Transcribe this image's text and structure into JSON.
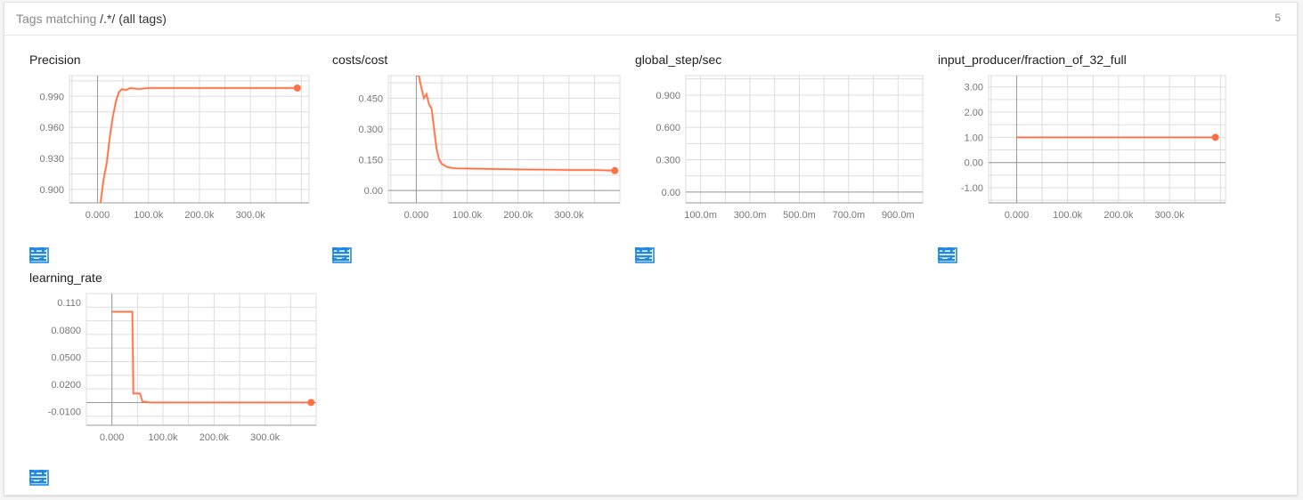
{
  "header": {
    "prefix": "Tags matching",
    "pattern": "/.*/",
    "suffix": "(all tags)",
    "count": "5"
  },
  "colors": {
    "series": "#ff7043",
    "grid": "#dddddd",
    "axis": "#999999",
    "icon": "#1e88e5"
  },
  "icons": [
    "fullscreen-icon",
    "log-scale-icon",
    "fit-domain-icon"
  ],
  "chart_data": [
    {
      "type": "line",
      "title": "Precision",
      "xlim": [
        -55000,
        415000
      ],
      "ylim": [
        0.887,
        1.01
      ],
      "xticks": [
        0,
        100000,
        200000,
        300000
      ],
      "xtick_labels": [
        "0.000",
        "100.0k",
        "200.0k",
        "300.0k"
      ],
      "yticks": [
        0.9,
        0.93,
        0.96,
        0.99
      ],
      "ytick_labels": [
        "0.900",
        "0.930",
        "0.960",
        "0.990"
      ],
      "series": [
        {
          "x": [
            0,
            6000,
            12000,
            18000,
            24000,
            30000,
            36000,
            42000,
            48000,
            55000,
            65000,
            80000,
            100000,
            150000,
            200000,
            250000,
            300000,
            350000,
            392000
          ],
          "y": [
            0.885,
            0.887,
            0.91,
            0.925,
            0.95,
            0.97,
            0.985,
            0.994,
            0.997,
            0.996,
            0.998,
            0.997,
            0.998,
            0.998,
            0.998,
            0.998,
            0.998,
            0.998,
            0.998
          ]
        }
      ]
    },
    {
      "type": "line",
      "title": "costs/cost",
      "xlim": [
        -55000,
        400000
      ],
      "ylim": [
        -0.06,
        0.56
      ],
      "xticks": [
        0,
        100000,
        200000,
        300000
      ],
      "xtick_labels": [
        "0.000",
        "100.0k",
        "200.0k",
        "300.0k"
      ],
      "yticks": [
        0,
        0.15,
        0.3,
        0.45
      ],
      "ytick_labels": [
        "0.00",
        "0.150",
        "0.300",
        "0.450"
      ],
      "series": [
        {
          "x": [
            0,
            5000,
            10000,
            15000,
            20000,
            25000,
            30000,
            35000,
            40000,
            45000,
            50000,
            60000,
            70000,
            80000,
            100000,
            150000,
            200000,
            250000,
            300000,
            350000,
            390000
          ],
          "y": [
            0.56,
            0.56,
            0.5,
            0.45,
            0.47,
            0.42,
            0.4,
            0.3,
            0.2,
            0.15,
            0.13,
            0.115,
            0.11,
            0.108,
            0.107,
            0.105,
            0.103,
            0.102,
            0.1,
            0.1,
            0.097
          ]
        }
      ]
    },
    {
      "type": "line",
      "title": "global_step/sec",
      "xlim": [
        0.04,
        1.0
      ],
      "ylim": [
        -0.1,
        1.08
      ],
      "xticks": [
        0.1,
        0.3,
        0.5,
        0.7,
        0.9
      ],
      "xtick_labels": [
        "100.0m",
        "300.0m",
        "500.0m",
        "700.0m",
        "900.0m"
      ],
      "yticks": [
        0,
        0.3,
        0.6,
        0.9
      ],
      "ytick_labels": [
        "0.00",
        "0.300",
        "0.600",
        "0.900"
      ],
      "series": [
        {
          "x": [],
          "y": []
        }
      ]
    },
    {
      "type": "line",
      "title": "input_producer/fraction_of_32_full",
      "xlim": [
        -55000,
        410000
      ],
      "ylim": [
        -1.6,
        3.45
      ],
      "xticks": [
        0,
        100000,
        200000,
        300000
      ],
      "xtick_labels": [
        "0.000",
        "100.0k",
        "200.0k",
        "300.0k"
      ],
      "yticks": [
        -1,
        0,
        1,
        2,
        3
      ],
      "ytick_labels": [
        "-1.00",
        "0.00",
        "1.00",
        "2.00",
        "3.00"
      ],
      "series": [
        {
          "x": [
            0,
            390000
          ],
          "y": [
            1,
            1
          ]
        }
      ]
    },
    {
      "type": "line",
      "title": "learning_rate",
      "xlim": [
        -50000,
        400000
      ],
      "ylim": [
        -0.025,
        0.12
      ],
      "xticks": [
        0,
        100000,
        200000,
        300000
      ],
      "xtick_labels": [
        "0.000",
        "100.0k",
        "200.0k",
        "300.0k"
      ],
      "yticks": [
        -0.01,
        0.02,
        0.05,
        0.08,
        0.11
      ],
      "ytick_labels": [
        "-0.0100",
        "0.0200",
        "0.0500",
        "0.0800",
        "0.110"
      ],
      "series": [
        {
          "x": [
            0,
            40000,
            42000,
            45000,
            55000,
            60000,
            75000,
            390000
          ],
          "y": [
            0.1,
            0.1,
            0.01,
            0.01,
            0.01,
            0.001,
            0.0001,
            0.0001
          ]
        }
      ]
    }
  ]
}
